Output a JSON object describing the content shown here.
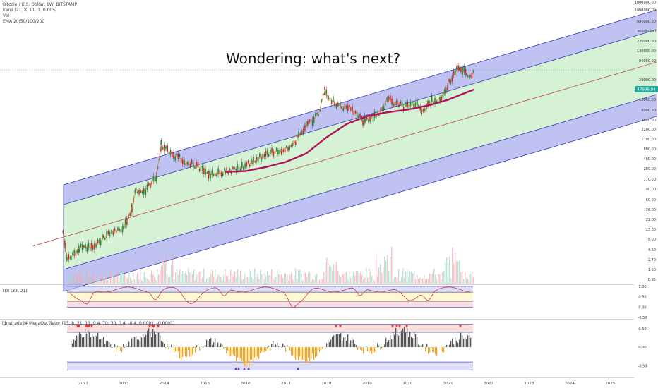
{
  "header": {
    "symbol_line": "Bitcoin / U.S. Dollar, 1W, BITSTAMP",
    "study_kenji": "Kenji (21, 8, 11, 1, 0.005)",
    "study_vol": "Vol",
    "study_ema": "EMA 20/50/100/200"
  },
  "annotation": "Wondering: what's next?",
  "colors": {
    "outer_channel": "#8c8fe6",
    "inner_channel": "#b5e8b0",
    "midline": "#c0504d",
    "ema": "#b0125e",
    "last_price_badge": "#26a69a",
    "mega_up": "#555555",
    "mega_green": "#4caf50",
    "mega_orange": "#f5a623",
    "marker_red": "#e53935",
    "marker_blue": "#5c3fc4"
  },
  "chart_data": [
    {
      "type": "line",
      "name": "price",
      "x": [
        2011.5,
        2011.55,
        2011.6,
        2011.7,
        2011.9,
        2012.2,
        2012.5,
        2012.7,
        2013.0,
        2013.2,
        2013.3,
        2013.5,
        2013.8,
        2013.92,
        2014.0,
        2014.3,
        2014.6,
        2014.9,
        2015.1,
        2015.5,
        2015.8,
        2016.2,
        2016.5,
        2016.9,
        2017.2,
        2017.5,
        2017.8,
        2017.96,
        2018.05,
        2018.3,
        2018.6,
        2018.9,
        2018.96,
        2019.3,
        2019.5,
        2019.75,
        2020.0,
        2020.2,
        2020.35,
        2020.6,
        2020.8,
        2020.95,
        2021.1,
        2021.28,
        2021.45,
        2021.55,
        2021.65
      ],
      "y": [
        10,
        5,
        2.5,
        3,
        4.8,
        5,
        8,
        11,
        13,
        40,
        100,
        90,
        200,
        1000,
        800,
        550,
        400,
        300,
        220,
        250,
        300,
        420,
        650,
        750,
        1100,
        2600,
        5000,
        17000,
        11000,
        8000,
        6500,
        3700,
        3500,
        5000,
        11000,
        8500,
        7200,
        8800,
        5500,
        9500,
        11000,
        18000,
        34000,
        58000,
        40000,
        33000,
        47000
      ]
    },
    {
      "type": "line",
      "name": "ema",
      "x": [
        2015.5,
        2016.0,
        2016.5,
        2017.0,
        2017.5,
        2018.0,
        2018.5,
        2019.0,
        2019.5,
        2020.0,
        2020.5,
        2021.0,
        2021.5,
        2021.65
      ],
      "y": [
        250,
        260,
        320,
        420,
        650,
        1500,
        3000,
        4500,
        5500,
        6300,
        7800,
        10500,
        16000,
        18000
      ]
    },
    {
      "type": "bar",
      "name": "TDI",
      "ylim": [
        -0.5,
        1.0
      ],
      "ticks": [
        "1.00",
        "0.50",
        "0.00",
        "-0.50"
      ]
    },
    {
      "type": "bar",
      "name": "MegaOscillator",
      "ylim": [
        -0.8,
        0.65
      ],
      "ticks": [
        "0.50",
        "0.00",
        "-0.50"
      ]
    }
  ],
  "axes": {
    "price_ticks": [
      "1800000.00",
      "1000000.00",
      "600000.00",
      "360000.00",
      "220000.00",
      "130000.00",
      "80000.00",
      "29000.00",
      "17000.00",
      "10000.00",
      "6000.00",
      "3600.00",
      "2200.00",
      "1300.00",
      "800.00",
      "480.00",
      "280.00",
      "170.00",
      "100.00",
      "60.00",
      "36.00",
      "22.00",
      "13.00",
      "8.00",
      "4.50",
      "2.70",
      "1.60",
      "0.95"
    ],
    "last_price": "47936.94",
    "years": [
      "2012",
      "2013",
      "2014",
      "2015",
      "2016",
      "2017",
      "2018",
      "2019",
      "2020",
      "2021",
      "2022",
      "2023",
      "2024",
      "2025"
    ]
  },
  "panels": {
    "tdi_label": "TDI (33, 21)",
    "mega_label": "ldnstrade24 MegaOscillator (13, 8, 21, 11, 0.4, 70, 30, 0.4, -0.4, 0.0001, -0.0001)"
  }
}
